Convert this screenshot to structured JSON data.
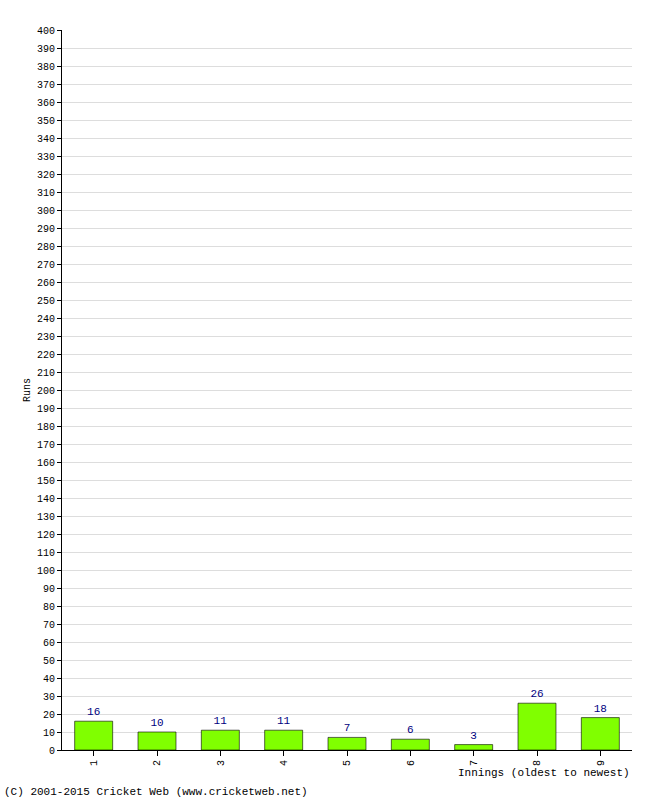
{
  "chart_data": {
    "type": "bar",
    "categories": [
      "1",
      "2",
      "3",
      "4",
      "5",
      "6",
      "7",
      "8",
      "9"
    ],
    "values": [
      16,
      10,
      11,
      11,
      7,
      6,
      3,
      26,
      18
    ],
    "color": "#80ff00",
    "ylim": [
      0,
      400
    ],
    "yticks": [
      0,
      10,
      20,
      30,
      40,
      50,
      60,
      70,
      80,
      90,
      100,
      110,
      120,
      130,
      140,
      150,
      160,
      170,
      180,
      190,
      200,
      210,
      220,
      230,
      240,
      250,
      260,
      270,
      280,
      290,
      300,
      310,
      320,
      330,
      340,
      350,
      360,
      370,
      380,
      390,
      400
    ],
    "y_label": "Runs",
    "x_label": "Innings (oldest to newest)",
    "annotations": [
      "(C) 2001-2015 Cricket Web (www.cricketweb.net)"
    ],
    "grid": true,
    "data_labels": true
  }
}
